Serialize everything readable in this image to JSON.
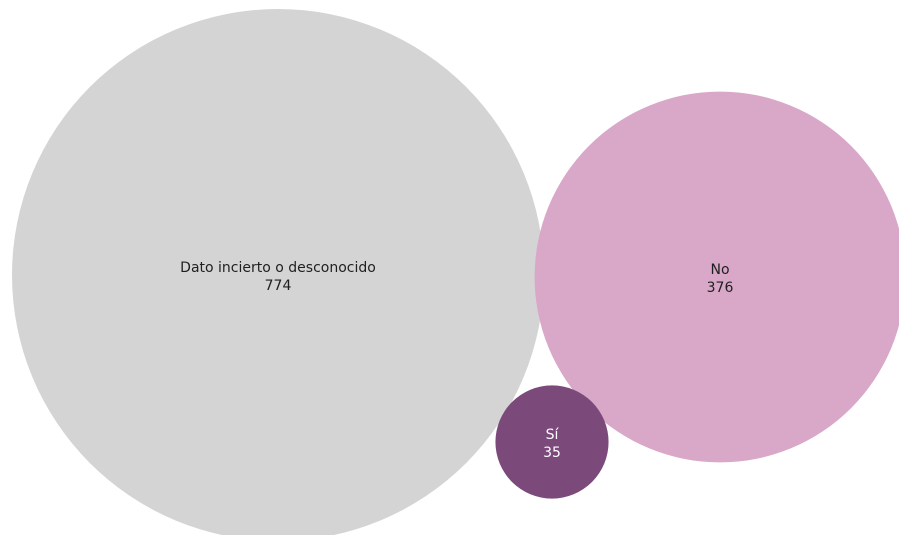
{
  "chart_data": {
    "type": "bubble",
    "title": "",
    "series": [
      {
        "name": "Dato incierto o desconocido",
        "value": 774,
        "color": "#d4d4d4",
        "label_color": "#1f1f1f"
      },
      {
        "name": "No",
        "value": 376,
        "color": "#d9a7c8",
        "label_color": "#1f1f1f"
      },
      {
        "name": "Sí",
        "value": 35,
        "color": "#7b4a7a",
        "label_color": "#ffffff"
      }
    ]
  }
}
